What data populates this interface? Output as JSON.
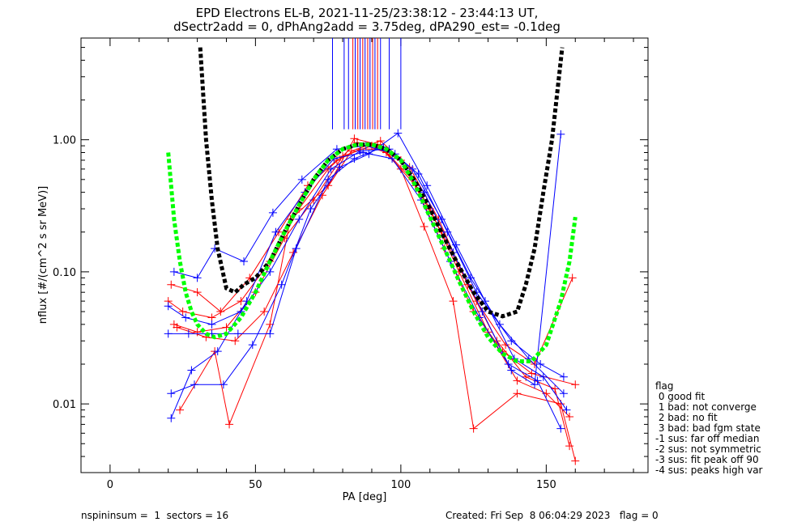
{
  "chart_data": {
    "type": "line",
    "title_line1": "EPD Electrons EL-B, 2021-11-25/23:38:12 - 23:44:13 UT,",
    "title_line2": "dSectr2add = 0, dPhAng2add = 3.75deg, dPA290_est=  -0.1deg",
    "xlabel": "PA [deg]",
    "ylabel": "nflux [#/(cm^2 s sr MeV)]",
    "xlim": [
      -10,
      185
    ],
    "ylim_log10": [
      -2.52,
      0.77
    ],
    "y_scale": "log",
    "x_ticks": [
      0,
      50,
      100,
      150
    ],
    "x_tick_labels": [
      "0",
      "50",
      "100",
      "150"
    ],
    "y_ticks": [
      0.01,
      0.1,
      1.0
    ],
    "y_tick_labels": [
      "0.01",
      "0.10",
      "1.00"
    ],
    "colors": {
      "red": "#ff0000",
      "blue": "#0000ff",
      "fit_green": "#00ff00",
      "fit_black": "#000000"
    },
    "series": [
      {
        "color": "red",
        "x": [
          20,
          25,
          35,
          45,
          55,
          65,
          75,
          85,
          95,
          105,
          115,
          125,
          135,
          145,
          160
        ],
        "y": [
          0.06,
          0.05,
          0.045,
          0.06,
          0.12,
          0.3,
          0.6,
          0.95,
          0.8,
          0.45,
          0.15,
          0.05,
          0.025,
          0.017,
          0.014
        ]
      },
      {
        "color": "red",
        "x": [
          22,
          30,
          40,
          50,
          60,
          70,
          80,
          90,
          100,
          110,
          120,
          130,
          140,
          150,
          158
        ],
        "y": [
          0.04,
          0.035,
          0.038,
          0.07,
          0.18,
          0.35,
          0.75,
          0.9,
          0.7,
          0.3,
          0.1,
          0.035,
          0.015,
          0.012,
          0.008
        ]
      },
      {
        "color": "red",
        "x": [
          24,
          36,
          41,
          55,
          62,
          75,
          84,
          92,
          100,
          108,
          118,
          125,
          140,
          155,
          160
        ],
        "y": [
          0.009,
          0.025,
          0.007,
          0.04,
          0.25,
          0.45,
          1.02,
          0.92,
          0.6,
          0.22,
          0.06,
          0.0065,
          0.012,
          0.01,
          0.0037
        ]
      },
      {
        "color": "red",
        "x": [
          21,
          30,
          38,
          48,
          58,
          68,
          78,
          86,
          94,
          104,
          114,
          126,
          136,
          146,
          159
        ],
        "y": [
          0.08,
          0.07,
          0.05,
          0.09,
          0.2,
          0.45,
          0.7,
          0.85,
          0.85,
          0.5,
          0.2,
          0.06,
          0.028,
          0.02,
          0.09
        ]
      },
      {
        "color": "red",
        "x": [
          23,
          33,
          43,
          53,
          63,
          73,
          83,
          93,
          103,
          113,
          123,
          133,
          143,
          153,
          158
        ],
        "y": [
          0.038,
          0.032,
          0.03,
          0.05,
          0.14,
          0.38,
          0.82,
          0.98,
          0.62,
          0.25,
          0.08,
          0.03,
          0.016,
          0.013,
          0.0048
        ]
      },
      {
        "color": "blue",
        "x": [
          20,
          26,
          35,
          45,
          55,
          65,
          76,
          86,
          96,
          106,
          116,
          126,
          138,
          148,
          156
        ],
        "y": [
          0.055,
          0.045,
          0.04,
          0.05,
          0.1,
          0.25,
          0.6,
          0.82,
          0.85,
          0.55,
          0.2,
          0.07,
          0.03,
          0.02,
          0.016
        ]
      },
      {
        "color": "blue",
        "x": [
          21,
          28,
          37,
          47,
          57,
          67,
          77,
          87,
          97,
          107,
          117,
          127,
          137,
          147,
          155
        ],
        "y": [
          0.0078,
          0.018,
          0.025,
          0.06,
          0.2,
          0.4,
          0.72,
          0.8,
          0.72,
          0.35,
          0.12,
          0.045,
          0.02,
          0.015,
          0.0065
        ]
      },
      {
        "color": "blue",
        "x": [
          22,
          30,
          36,
          46,
          56,
          66,
          78,
          88,
          98,
          108,
          118,
          128,
          138,
          146,
          155
        ],
        "y": [
          0.1,
          0.09,
          0.15,
          0.12,
          0.28,
          0.5,
          0.85,
          0.9,
          0.78,
          0.4,
          0.14,
          0.05,
          0.018,
          0.014,
          1.1
        ]
      },
      {
        "color": "blue",
        "x": [
          20,
          27,
          35,
          44,
          55,
          64,
          75,
          84,
          94,
          104,
          114,
          124,
          134,
          144,
          156
        ],
        "y": [
          0.034,
          0.034,
          0.034,
          0.034,
          0.034,
          0.15,
          0.5,
          0.72,
          0.88,
          0.6,
          0.25,
          0.09,
          0.04,
          0.022,
          0.012
        ]
      },
      {
        "color": "blue",
        "x": [
          21,
          29,
          39,
          49,
          59,
          69,
          79,
          89,
          99,
          109,
          119,
          129,
          139,
          149,
          157
        ],
        "y": [
          0.012,
          0.014,
          0.014,
          0.028,
          0.08,
          0.3,
          0.62,
          0.78,
          1.12,
          0.45,
          0.16,
          0.06,
          0.022,
          0.016,
          0.009
        ]
      }
    ],
    "green_fit": {
      "x": [
        20,
        22,
        24,
        26,
        28,
        30,
        33,
        36,
        40,
        45,
        50,
        55,
        60,
        65,
        70,
        75,
        80,
        85,
        90,
        95,
        100,
        105,
        110,
        115,
        120,
        125,
        130,
        135,
        140,
        145,
        150,
        155,
        158,
        160
      ],
      "y": [
        0.8,
        0.25,
        0.12,
        0.07,
        0.05,
        0.04,
        0.034,
        0.032,
        0.034,
        0.045,
        0.07,
        0.12,
        0.2,
        0.32,
        0.5,
        0.7,
        0.85,
        0.92,
        0.92,
        0.85,
        0.7,
        0.45,
        0.26,
        0.15,
        0.085,
        0.05,
        0.032,
        0.024,
        0.021,
        0.021,
        0.028,
        0.06,
        0.12,
        0.26
      ]
    },
    "black_fit": {
      "x": [
        31,
        33,
        35,
        37,
        40,
        43,
        46,
        50,
        55,
        60,
        65,
        70,
        75,
        80,
        85,
        90,
        95,
        100,
        105,
        110,
        115,
        120,
        125,
        130,
        135,
        140,
        143,
        146,
        149,
        152,
        154,
        155.5
      ],
      "y": [
        5.0,
        1.0,
        0.35,
        0.15,
        0.075,
        0.07,
        0.08,
        0.09,
        0.12,
        0.2,
        0.32,
        0.5,
        0.7,
        0.85,
        0.92,
        0.92,
        0.85,
        0.7,
        0.48,
        0.3,
        0.18,
        0.11,
        0.07,
        0.05,
        0.046,
        0.05,
        0.08,
        0.15,
        0.4,
        1.0,
        2.5,
        5.0
      ]
    },
    "vertical_markers": [
      {
        "x": 76.5,
        "color": "blue"
      },
      {
        "x": 80.5,
        "color": "blue"
      },
      {
        "x": 82.0,
        "color": "blue"
      },
      {
        "x": 83.5,
        "color": "red"
      },
      {
        "x": 84.3,
        "color": "blue"
      },
      {
        "x": 85.2,
        "color": "red"
      },
      {
        "x": 86.0,
        "color": "blue"
      },
      {
        "x": 86.9,
        "color": "red"
      },
      {
        "x": 87.7,
        "color": "blue"
      },
      {
        "x": 88.6,
        "color": "red"
      },
      {
        "x": 89.4,
        "color": "blue"
      },
      {
        "x": 90.3,
        "color": "red"
      },
      {
        "x": 91.1,
        "color": "blue"
      },
      {
        "x": 92.0,
        "color": "red"
      },
      {
        "x": 93.0,
        "color": "blue"
      },
      {
        "x": 96.0,
        "color": "blue"
      },
      {
        "x": 100.0,
        "color": "blue"
      }
    ],
    "legend": {
      "title": "flag",
      "items": [
        " 0 good fit",
        " 1 bad: not converge",
        " 2 bad: no fit",
        " 3 bad: bad fgm state",
        "-1 sus: far off median",
        "-2 sus: not symmetric",
        "-3 sus: fit peak off 90",
        "-4 sus: peaks high var"
      ]
    },
    "footer_left": "nspininsum =  1  sectors = 16",
    "footer_right": "Created: Fri Sep  8 06:04:29 2023   flag = 0"
  }
}
